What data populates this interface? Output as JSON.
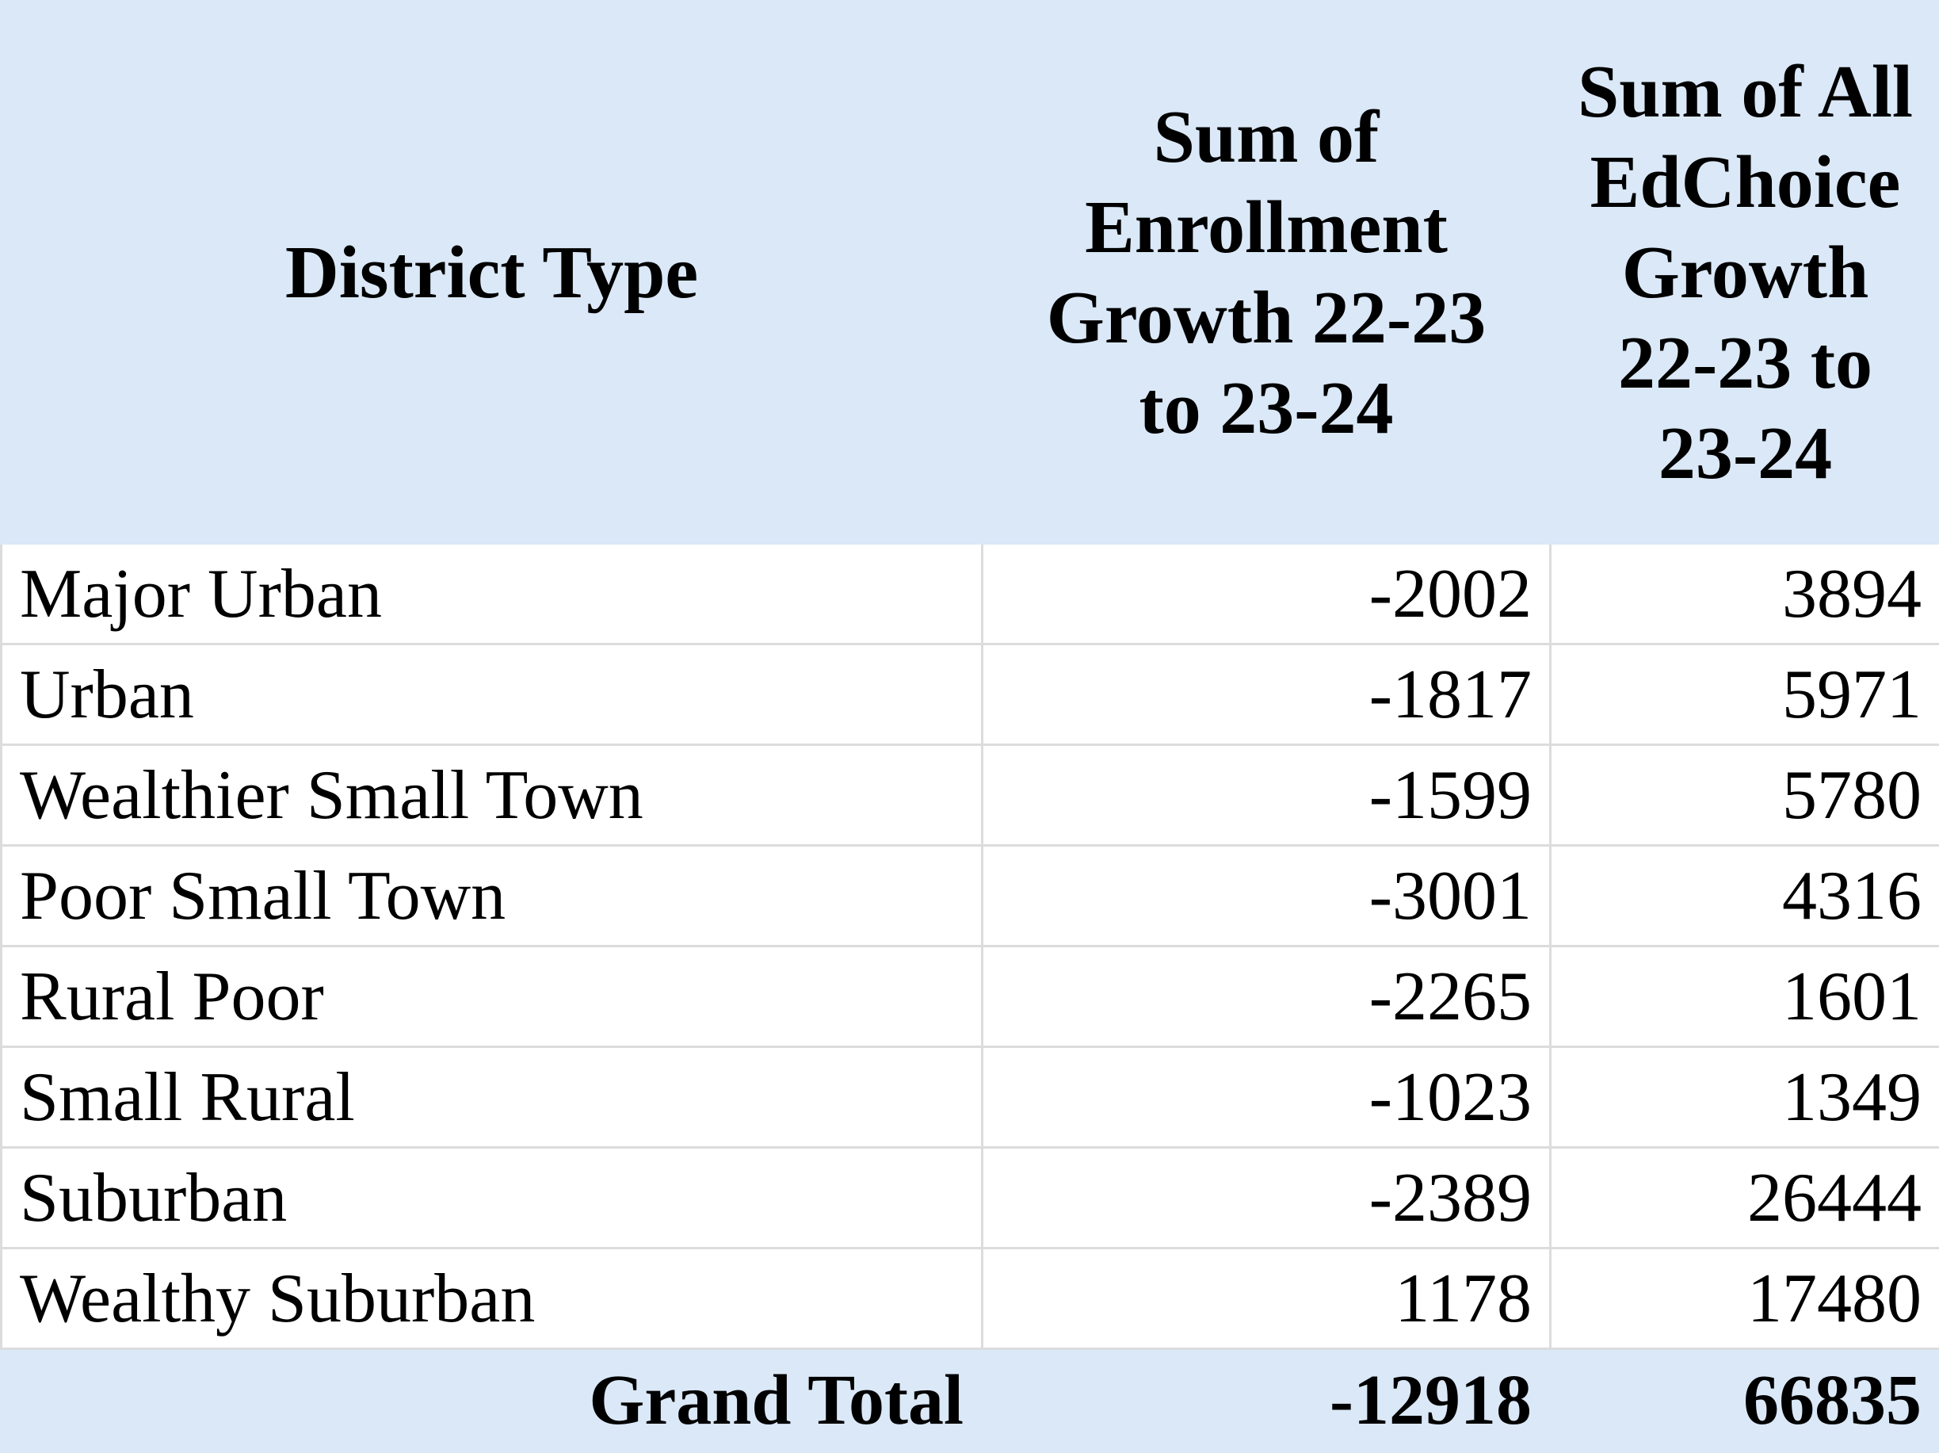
{
  "table": {
    "headers": [
      "District Type",
      "Sum of Enrollment Growth 22-23 to 23-24",
      "Sum of All EdChoice Growth 22-23 to 23-24"
    ],
    "rows": [
      [
        "Major Urban",
        -2002,
        3894
      ],
      [
        "Urban",
        -1817,
        5971
      ],
      [
        "Wealthier Small Town",
        -1599,
        5780
      ],
      [
        "Poor Small Town",
        -3001,
        4316
      ],
      [
        "Rural Poor",
        -2265,
        1601
      ],
      [
        "Small Rural",
        -1023,
        1349
      ],
      [
        "Suburban",
        -2389,
        26444
      ],
      [
        "Wealthy Suburban",
        1178,
        17480
      ]
    ],
    "total": [
      "Grand Total",
      -12918,
      66835
    ]
  }
}
